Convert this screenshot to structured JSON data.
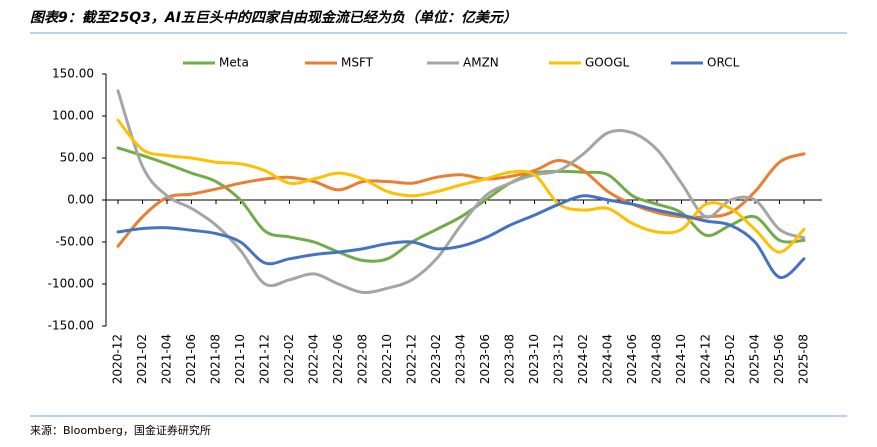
{
  "chart_data": {
    "type": "line",
    "title": "图表9：截至25Q3，AI五巨头中的四家自由现金流已经为负（单位：亿美元）",
    "source": "来源：Bloomberg，国金证券研究所",
    "categories": [
      "2020-12",
      "2021-02",
      "2021-04",
      "2021-06",
      "2021-08",
      "2021-10",
      "2021-12",
      "2022-02",
      "2022-04",
      "2022-06",
      "2022-08",
      "2022-10",
      "2022-12",
      "2023-02",
      "2023-04",
      "2023-06",
      "2023-08",
      "2023-10",
      "2023-12",
      "2024-02",
      "2024-04",
      "2024-06",
      "2024-08",
      "2024-10",
      "2024-12",
      "2025-02",
      "2025-04",
      "2025-06",
      "2025-08"
    ],
    "series": [
      {
        "name": "Meta",
        "color": "#70ad47",
        "values": [
          62,
          53,
          43,
          32,
          22,
          0,
          -37,
          -44,
          -50,
          -62,
          -72,
          -70,
          -50,
          -35,
          -20,
          0,
          20,
          32,
          34,
          33,
          30,
          5,
          -5,
          -15,
          -42,
          -30,
          -20,
          -48,
          -48
        ]
      },
      {
        "name": "MSFT",
        "color": "#ed7d31",
        "values": [
          -55,
          -20,
          3,
          7,
          13,
          20,
          25,
          27,
          22,
          12,
          22,
          22,
          20,
          27,
          30,
          25,
          28,
          35,
          47,
          35,
          10,
          -5,
          -15,
          -20,
          -20,
          -15,
          10,
          45,
          55
        ]
      },
      {
        "name": "AMZN",
        "color": "#a5a5a5",
        "values": [
          130,
          40,
          5,
          -10,
          -30,
          -60,
          -100,
          -95,
          -88,
          -100,
          -110,
          -105,
          -95,
          -70,
          -30,
          5,
          20,
          30,
          35,
          55,
          80,
          80,
          60,
          20,
          -20,
          0,
          0,
          -35,
          -45
        ]
      },
      {
        "name": "GOOGL",
        "color": "#ffc000",
        "values": [
          95,
          60,
          53,
          50,
          45,
          43,
          35,
          20,
          25,
          32,
          25,
          10,
          5,
          10,
          18,
          25,
          33,
          30,
          -5,
          -12,
          -10,
          -28,
          -38,
          -35,
          -5,
          -10,
          -35,
          -62,
          -35
        ]
      },
      {
        "name": "ORCL",
        "color": "#4472c4",
        "values": [
          -38,
          -34,
          -33,
          -36,
          -40,
          -50,
          -75,
          -70,
          -65,
          -62,
          -58,
          -52,
          -50,
          -58,
          -55,
          -45,
          -30,
          -18,
          -5,
          5,
          0,
          -5,
          -12,
          -18,
          -25,
          -30,
          -50,
          -92,
          -70
        ]
      }
    ],
    "ylim": [
      -150,
      150
    ],
    "yticks": [
      {
        "value": 150,
        "label": "150.00"
      },
      {
        "value": 100,
        "label": "100.00"
      },
      {
        "value": 50,
        "label": "50.00"
      },
      {
        "value": 0,
        "label": "0.00"
      },
      {
        "value": -50,
        "label": "-50.00"
      },
      {
        "value": -100,
        "label": "-100.00"
      },
      {
        "value": -150,
        "label": "-150.00"
      }
    ],
    "legend": "top"
  }
}
